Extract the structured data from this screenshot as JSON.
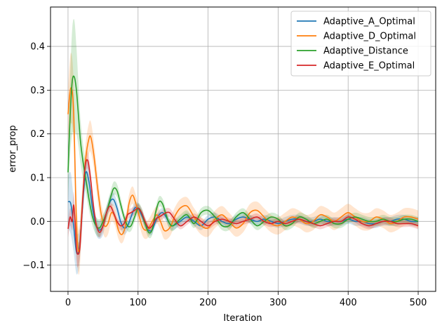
{
  "chart_data": {
    "type": "line",
    "title": "",
    "xlabel": "Iteration",
    "ylabel": "error_prop",
    "xlim": [
      -25,
      525
    ],
    "ylim": [
      -0.16,
      0.49
    ],
    "xticks": [
      0,
      100,
      200,
      300,
      400,
      500
    ],
    "xtick_labels": [
      "0",
      "100",
      "200",
      "300",
      "400",
      "500"
    ],
    "yticks": [
      -0.1,
      0.0,
      0.1,
      0.2,
      0.3,
      0.4
    ],
    "ytick_labels": [
      "−0.1",
      "0.0",
      "0.1",
      "0.2",
      "0.3",
      "0.4"
    ],
    "grid": true,
    "legend_position": "top-right",
    "series": [
      {
        "name": "Adaptive_A_Optimal",
        "color": "#1f77b4",
        "x": [
          0,
          4,
          8,
          12,
          16,
          20,
          25,
          30,
          35,
          40,
          45,
          50,
          55,
          60,
          65,
          70,
          75,
          80,
          85,
          90,
          95,
          100,
          105,
          110,
          115,
          120,
          125,
          130,
          135,
          140,
          145,
          150,
          160,
          170,
          180,
          190,
          200,
          210,
          220,
          230,
          240,
          250,
          260,
          270,
          280,
          290,
          300,
          310,
          320,
          330,
          340,
          350,
          360,
          370,
          380,
          390,
          400,
          410,
          420,
          430,
          440,
          450,
          460,
          470,
          480,
          490,
          500
        ],
        "y": [
          0.045,
          0.04,
          -0.01,
          -0.07,
          -0.06,
          0.02,
          0.11,
          0.09,
          0.03,
          -0.01,
          -0.02,
          -0.01,
          0.02,
          0.045,
          0.05,
          0.03,
          0.0,
          -0.015,
          -0.01,
          0.01,
          0.03,
          0.03,
          0.015,
          -0.005,
          -0.02,
          -0.02,
          0.0,
          0.015,
          0.02,
          0.01,
          -0.005,
          -0.01,
          0.0,
          0.01,
          0.0,
          -0.01,
          0.005,
          0.01,
          0.0,
          -0.005,
          0.005,
          0.01,
          0.005,
          0.0,
          0.005,
          0.0,
          -0.005,
          0.0,
          0.005,
          0.005,
          0.0,
          0.0,
          0.005,
          0.0,
          0.0,
          0.0,
          0.005,
          0.0,
          0.0,
          -0.005,
          -0.005,
          0.0,
          0.0,
          0.005,
          0.005,
          0.0,
          0.0
        ],
        "band": [
          0.06,
          0.07,
          0.06,
          0.05,
          0.04,
          0.04,
          0.03,
          0.03,
          0.02,
          0.02,
          0.02,
          0.02,
          0.015,
          0.015,
          0.015,
          0.015,
          0.015,
          0.015,
          0.012,
          0.012,
          0.012,
          0.012,
          0.012,
          0.012,
          0.01,
          0.01,
          0.01,
          0.01,
          0.01,
          0.01,
          0.01,
          0.01,
          0.01,
          0.01,
          0.01,
          0.01,
          0.01,
          0.01,
          0.01,
          0.01,
          0.01,
          0.01,
          0.01,
          0.01,
          0.01,
          0.01,
          0.01,
          0.01,
          0.01,
          0.01,
          0.01,
          0.01,
          0.01,
          0.01,
          0.01,
          0.01,
          0.01,
          0.01,
          0.01,
          0.01,
          0.01,
          0.01,
          0.01,
          0.01,
          0.01,
          0.01,
          0.01
        ]
      },
      {
        "name": "Adaptive_D_Optimal",
        "color": "#ff7f0e",
        "x": [
          0,
          4,
          8,
          12,
          16,
          20,
          25,
          30,
          33,
          37,
          42,
          47,
          52,
          57,
          62,
          67,
          72,
          77,
          82,
          87,
          92,
          97,
          102,
          107,
          112,
          117,
          122,
          127,
          132,
          137,
          142,
          147,
          152,
          160,
          170,
          180,
          190,
          200,
          210,
          220,
          230,
          240,
          250,
          260,
          270,
          280,
          290,
          300,
          310,
          320,
          330,
          340,
          350,
          360,
          370,
          380,
          390,
          400,
          410,
          420,
          430,
          440,
          450,
          460,
          470,
          480,
          490,
          500
        ],
        "y": [
          0.245,
          0.305,
          0.25,
          0.0,
          -0.07,
          0.03,
          0.14,
          0.19,
          0.19,
          0.15,
          0.08,
          0.02,
          -0.01,
          -0.005,
          0.02,
          0.01,
          -0.02,
          -0.03,
          -0.01,
          0.04,
          0.06,
          0.04,
          0.01,
          -0.015,
          -0.02,
          -0.01,
          0.005,
          0.015,
          0.0,
          -0.02,
          -0.02,
          -0.01,
          0.01,
          0.03,
          0.035,
          0.01,
          -0.01,
          -0.015,
          0.005,
          0.015,
          0.0,
          -0.015,
          -0.005,
          0.02,
          0.025,
          0.01,
          -0.005,
          -0.01,
          0.0,
          0.01,
          0.005,
          -0.005,
          0.0,
          0.015,
          0.01,
          0.0,
          0.01,
          0.02,
          0.01,
          0.0,
          0.0,
          0.01,
          0.005,
          -0.005,
          0.0,
          0.01,
          0.01,
          0.005
        ],
        "band": [
          0.06,
          0.08,
          0.07,
          0.06,
          0.05,
          0.04,
          0.035,
          0.035,
          0.035,
          0.03,
          0.03,
          0.025,
          0.025,
          0.025,
          0.02,
          0.02,
          0.02,
          0.02,
          0.02,
          0.02,
          0.02,
          0.02,
          0.02,
          0.02,
          0.02,
          0.02,
          0.02,
          0.02,
          0.02,
          0.02,
          0.02,
          0.02,
          0.02,
          0.02,
          0.02,
          0.02,
          0.02,
          0.02,
          0.02,
          0.02,
          0.02,
          0.02,
          0.02,
          0.02,
          0.02,
          0.02,
          0.02,
          0.02,
          0.02,
          0.02,
          0.02,
          0.02,
          0.02,
          0.02,
          0.02,
          0.02,
          0.02,
          0.02,
          0.02,
          0.02,
          0.02,
          0.02,
          0.02,
          0.02,
          0.02,
          0.02,
          0.02,
          0.02
        ]
      },
      {
        "name": "Adaptive_Distance",
        "color": "#2ca02c",
        "x": [
          0,
          3,
          6,
          9,
          12,
          15,
          18,
          22,
          26,
          30,
          35,
          40,
          45,
          50,
          55,
          60,
          65,
          70,
          75,
          80,
          85,
          90,
          95,
          100,
          105,
          110,
          115,
          120,
          125,
          130,
          135,
          140,
          145,
          150,
          160,
          170,
          180,
          190,
          200,
          210,
          220,
          230,
          240,
          250,
          260,
          270,
          280,
          290,
          300,
          310,
          320,
          330,
          340,
          350,
          360,
          370,
          380,
          390,
          400,
          410,
          420,
          430,
          440,
          450,
          460,
          470,
          480,
          490,
          500
        ],
        "y": [
          0.112,
          0.24,
          0.32,
          0.33,
          0.3,
          0.24,
          0.18,
          0.13,
          0.09,
          0.05,
          0.01,
          -0.01,
          -0.015,
          0.0,
          0.02,
          0.05,
          0.075,
          0.07,
          0.04,
          0.01,
          -0.01,
          -0.01,
          0.01,
          0.03,
          0.02,
          -0.005,
          -0.025,
          -0.02,
          0.02,
          0.045,
          0.04,
          0.015,
          -0.005,
          -0.01,
          0.005,
          0.015,
          -0.005,
          0.02,
          0.025,
          0.01,
          -0.01,
          -0.01,
          0.01,
          0.02,
          0.005,
          -0.01,
          0.0,
          0.01,
          0.005,
          -0.01,
          -0.005,
          0.01,
          0.005,
          -0.005,
          0.0,
          0.005,
          -0.005,
          -0.005,
          0.005,
          0.01,
          0.005,
          0.0,
          0.0,
          0.005,
          0.0,
          0.0,
          0.005,
          0.005,
          0.0
        ],
        "band": [
          0.06,
          0.09,
          0.12,
          0.13,
          0.1,
          0.07,
          0.05,
          0.04,
          0.03,
          0.025,
          0.02,
          0.02,
          0.02,
          0.015,
          0.015,
          0.015,
          0.015,
          0.015,
          0.015,
          0.012,
          0.012,
          0.012,
          0.012,
          0.012,
          0.012,
          0.012,
          0.012,
          0.012,
          0.012,
          0.012,
          0.012,
          0.012,
          0.012,
          0.012,
          0.01,
          0.01,
          0.01,
          0.01,
          0.01,
          0.01,
          0.01,
          0.01,
          0.01,
          0.01,
          0.01,
          0.01,
          0.01,
          0.01,
          0.01,
          0.01,
          0.01,
          0.01,
          0.01,
          0.01,
          0.01,
          0.01,
          0.01,
          0.01,
          0.01,
          0.01,
          0.01,
          0.01,
          0.01,
          0.01,
          0.01,
          0.01,
          0.01,
          0.01,
          0.01
        ]
      },
      {
        "name": "Adaptive_E_Optimal",
        "color": "#d62728",
        "x": [
          0,
          3,
          6,
          8,
          10,
          12,
          14,
          17,
          20,
          24,
          28,
          32,
          36,
          40,
          45,
          50,
          55,
          60,
          65,
          70,
          75,
          80,
          85,
          90,
          95,
          100,
          105,
          110,
          115,
          120,
          125,
          130,
          135,
          140,
          145,
          150,
          160,
          170,
          180,
          190,
          200,
          210,
          220,
          230,
          240,
          250,
          260,
          270,
          280,
          290,
          300,
          310,
          320,
          330,
          340,
          350,
          360,
          370,
          380,
          390,
          400,
          410,
          420,
          430,
          440,
          450,
          460,
          470,
          480,
          490,
          500
        ],
        "y": [
          -0.017,
          0.01,
          0.0,
          0.038,
          0.0,
          -0.06,
          -0.075,
          -0.06,
          0.02,
          0.12,
          0.14,
          0.1,
          0.04,
          -0.005,
          -0.025,
          -0.01,
          0.02,
          0.035,
          0.02,
          0.0,
          -0.01,
          -0.005,
          0.015,
          0.02,
          0.025,
          0.03,
          0.02,
          0.0,
          -0.015,
          -0.01,
          0.005,
          0.01,
          0.015,
          0.02,
          0.02,
          0.01,
          -0.01,
          0.0,
          0.01,
          0.0,
          -0.01,
          0.0,
          0.005,
          0.0,
          -0.005,
          0.0,
          0.005,
          0.01,
          0.0,
          -0.005,
          0.0,
          -0.005,
          0.0,
          0.005,
          0.0,
          -0.005,
          -0.01,
          -0.005,
          0.0,
          0.0,
          0.01,
          0.005,
          -0.005,
          -0.01,
          -0.005,
          0.0,
          0.0,
          -0.005,
          -0.005,
          -0.005,
          -0.01
        ],
        "band": [
          0.02,
          0.02,
          0.02,
          0.03,
          0.03,
          0.03,
          0.03,
          0.02,
          0.02,
          0.02,
          0.02,
          0.02,
          0.015,
          0.015,
          0.012,
          0.012,
          0.012,
          0.012,
          0.01,
          0.01,
          0.01,
          0.01,
          0.01,
          0.01,
          0.01,
          0.01,
          0.01,
          0.01,
          0.01,
          0.01,
          0.01,
          0.01,
          0.01,
          0.01,
          0.01,
          0.01,
          0.008,
          0.008,
          0.008,
          0.008,
          0.008,
          0.008,
          0.008,
          0.008,
          0.008,
          0.008,
          0.008,
          0.008,
          0.008,
          0.008,
          0.008,
          0.008,
          0.008,
          0.008,
          0.008,
          0.008,
          0.008,
          0.008,
          0.008,
          0.008,
          0.008,
          0.008,
          0.008,
          0.008,
          0.008,
          0.008,
          0.008,
          0.008,
          0.008,
          0.008,
          0.008
        ]
      }
    ]
  }
}
